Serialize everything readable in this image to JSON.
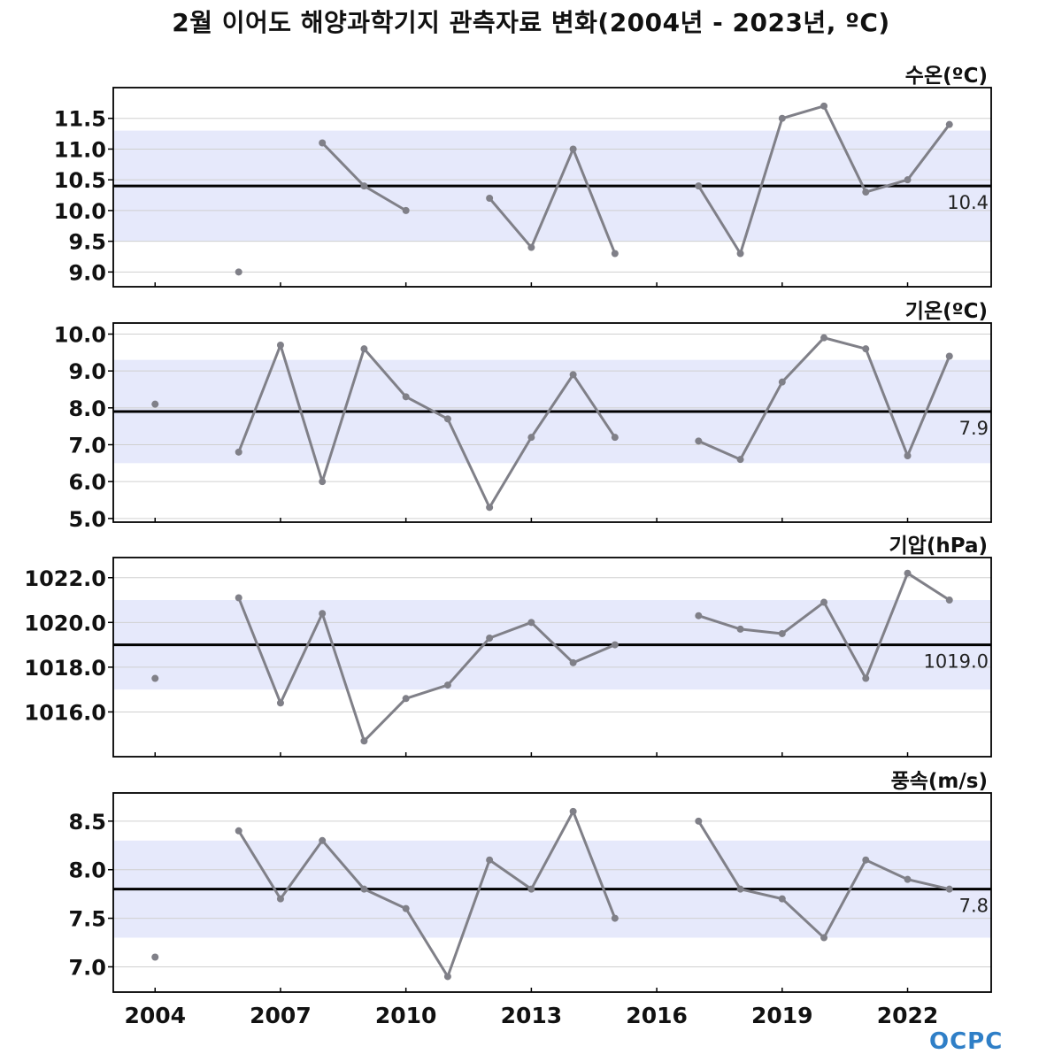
{
  "title": "2월 이어도 해양과학기지 관측자료 변화(2004년 - 2023년, ºC)",
  "logo_text": "OCPC",
  "colors": {
    "line": "#808088",
    "mean_line": "#000000",
    "band": "#e6e9fb",
    "grid": "#d0d0d0"
  },
  "chart_data": [
    {
      "type": "line",
      "label": "수온(ºC)",
      "x": [
        2004,
        2005,
        2006,
        2007,
        2008,
        2009,
        2010,
        2011,
        2012,
        2013,
        2014,
        2015,
        2016,
        2017,
        2018,
        2019,
        2020,
        2021,
        2022,
        2023
      ],
      "values": [
        null,
        null,
        9.0,
        null,
        11.1,
        10.4,
        10.0,
        null,
        10.2,
        9.4,
        11.0,
        9.3,
        null,
        10.4,
        9.3,
        11.5,
        11.7,
        10.3,
        10.5,
        11.4
      ],
      "mean": 10.4,
      "mean_label": "10.4",
      "band": [
        9.5,
        11.3
      ],
      "ylim": [
        8.76,
        12.0
      ],
      "yticks": [
        9.0,
        9.5,
        10.0,
        10.5,
        11.0,
        11.5
      ],
      "ytick_labels": [
        "9.0",
        "9.5",
        "10.0",
        "10.5",
        "11.0",
        "11.5"
      ]
    },
    {
      "type": "line",
      "label": "기온(ºC)",
      "x": [
        2004,
        2005,
        2006,
        2007,
        2008,
        2009,
        2010,
        2011,
        2012,
        2013,
        2014,
        2015,
        2016,
        2017,
        2018,
        2019,
        2020,
        2021,
        2022,
        2023
      ],
      "values": [
        8.1,
        null,
        6.8,
        9.7,
        6.0,
        9.6,
        8.3,
        7.7,
        5.3,
        7.2,
        8.9,
        7.2,
        null,
        7.1,
        6.6,
        8.7,
        9.9,
        9.6,
        6.7,
        9.4
      ],
      "mean": 7.9,
      "mean_label": "7.9",
      "band": [
        6.5,
        9.3
      ],
      "ylim": [
        4.9,
        10.3
      ],
      "yticks": [
        5.0,
        6.0,
        7.0,
        8.0,
        9.0,
        10.0
      ],
      "ytick_labels": [
        "5.0",
        "6.0",
        "7.0",
        "8.0",
        "9.0",
        "10.0"
      ]
    },
    {
      "type": "line",
      "label": "기압(hPa)",
      "x": [
        2004,
        2005,
        2006,
        2007,
        2008,
        2009,
        2010,
        2011,
        2012,
        2013,
        2014,
        2015,
        2016,
        2017,
        2018,
        2019,
        2020,
        2021,
        2022,
        2023
      ],
      "values": [
        1017.5,
        null,
        1021.1,
        1016.4,
        1020.4,
        1014.7,
        1016.6,
        1017.2,
        1019.3,
        1020.0,
        1018.2,
        1019.0,
        null,
        1020.3,
        1019.7,
        1019.5,
        1020.9,
        1017.5,
        1022.2,
        1021.0
      ],
      "mean": 1019.0,
      "mean_label": "1019.0",
      "band": [
        1017.0,
        1021.0
      ],
      "ylim": [
        1014.0,
        1022.9
      ],
      "yticks": [
        1016.0,
        1018.0,
        1020.0,
        1022.0
      ],
      "ytick_labels": [
        "1016.0",
        "1018.0",
        "1020.0",
        "1022.0"
      ]
    },
    {
      "type": "line",
      "label": "풍속(m/s)",
      "x": [
        2004,
        2005,
        2006,
        2007,
        2008,
        2009,
        2010,
        2011,
        2012,
        2013,
        2014,
        2015,
        2016,
        2017,
        2018,
        2019,
        2020,
        2021,
        2022,
        2023
      ],
      "values": [
        7.1,
        null,
        8.4,
        7.7,
        8.3,
        7.8,
        7.6,
        6.9,
        8.1,
        7.8,
        8.6,
        7.5,
        null,
        8.5,
        7.8,
        7.7,
        7.3,
        8.1,
        7.9,
        7.8
      ],
      "mean": 7.8,
      "mean_label": "7.8",
      "band": [
        7.3,
        8.3
      ],
      "ylim": [
        6.74,
        8.79
      ],
      "yticks": [
        7.0,
        7.5,
        8.0,
        8.5
      ],
      "ytick_labels": [
        "7.0",
        "7.5",
        "8.0",
        "8.5"
      ]
    }
  ],
  "x_axis": {
    "ticks": [
      2004,
      2007,
      2010,
      2013,
      2016,
      2019,
      2022
    ],
    "tick_labels": [
      "2004",
      "2007",
      "2010",
      "2013",
      "2016",
      "2019",
      "2022"
    ],
    "minor_ticks": [
      2004,
      2007,
      2010,
      2013,
      2016,
      2019,
      2022
    ],
    "xlim": [
      2003,
      2024
    ]
  }
}
